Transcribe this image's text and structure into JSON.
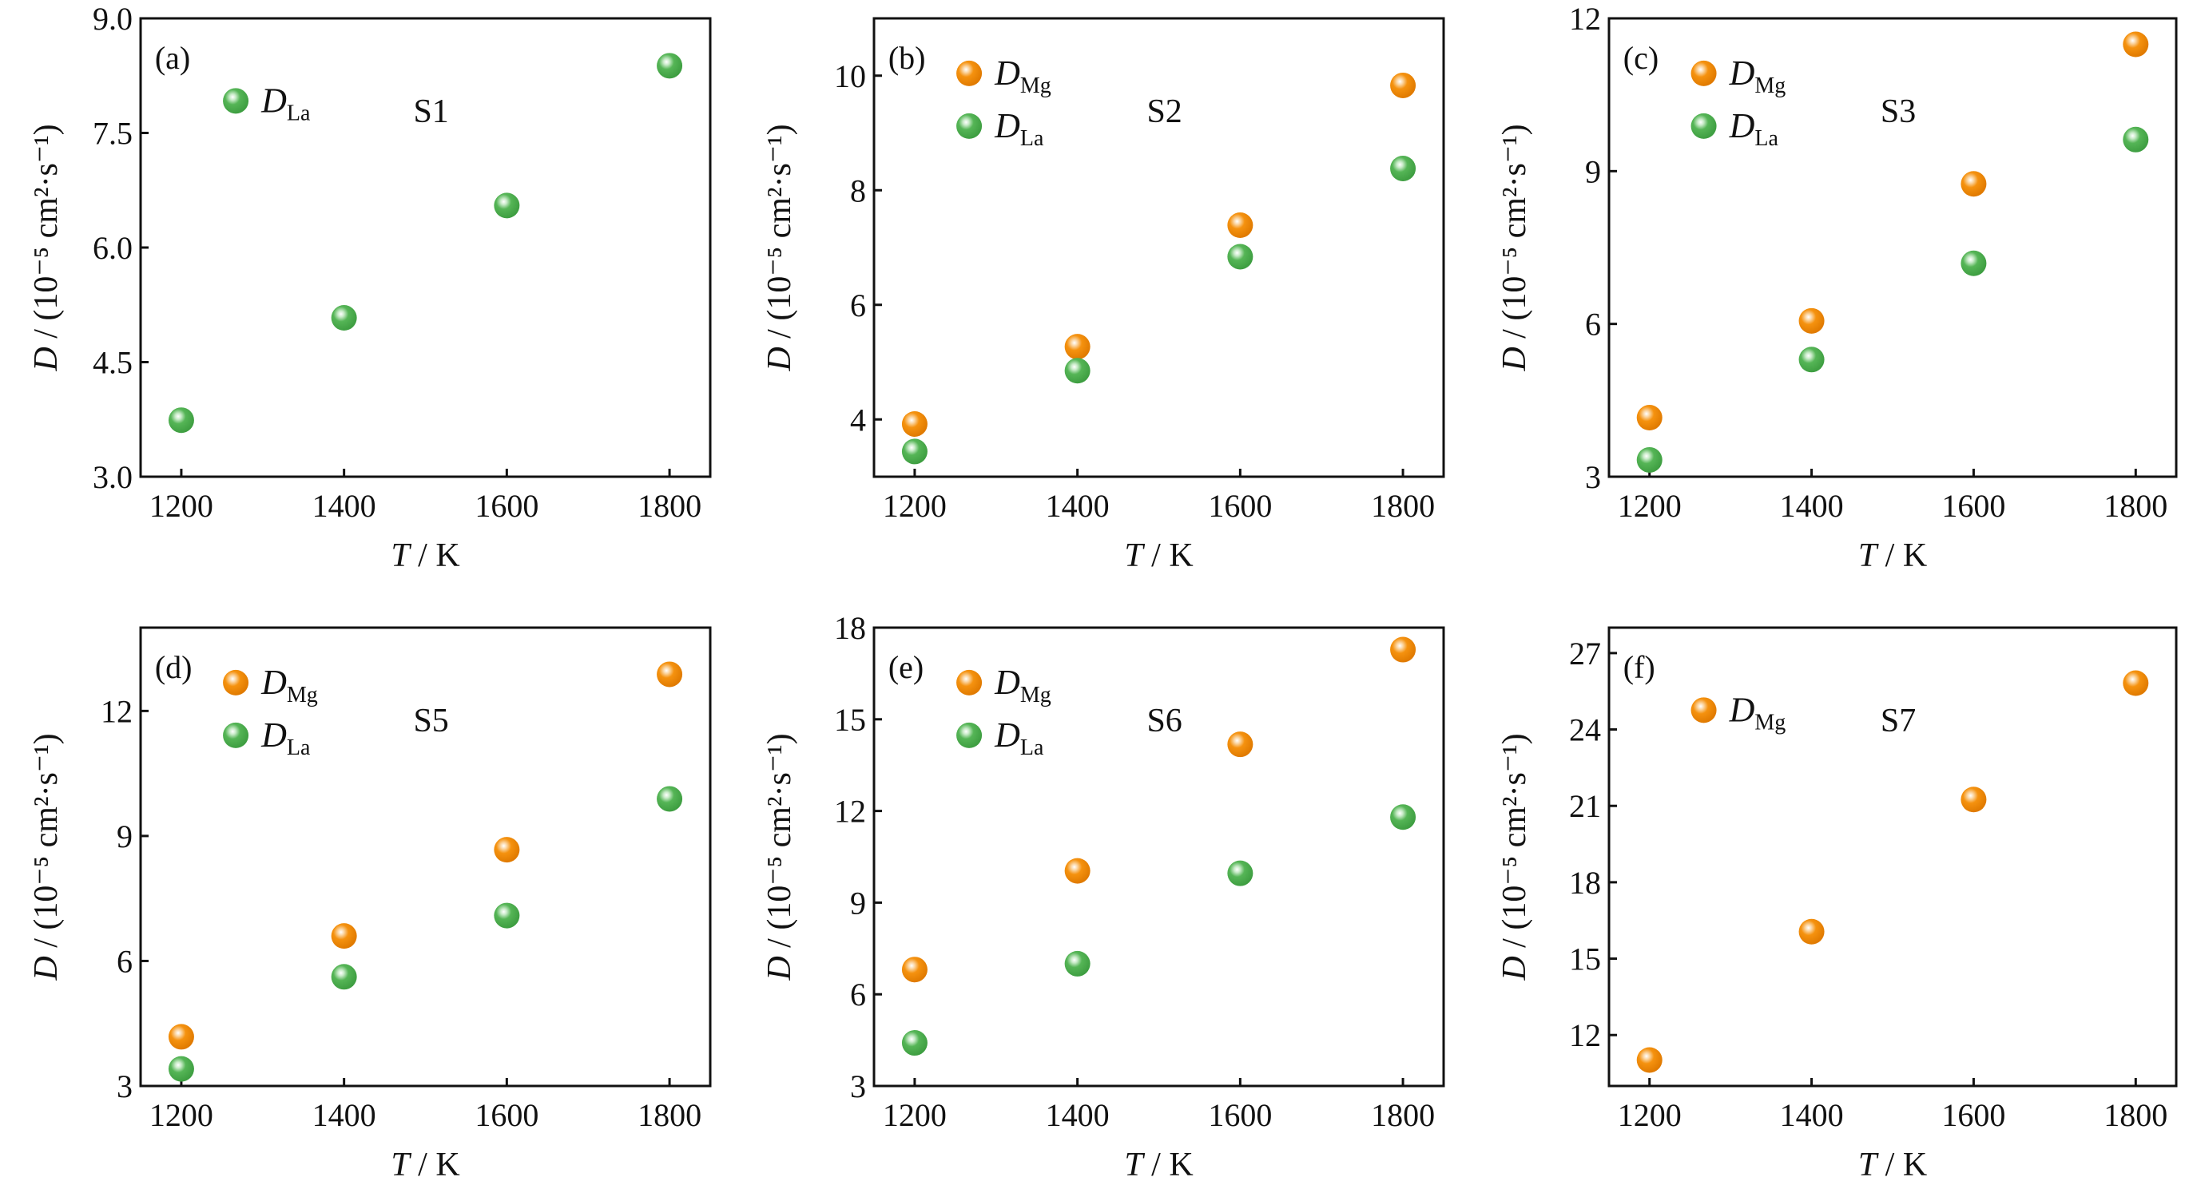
{
  "colors": {
    "D_Mg": "#F28A0C",
    "D_La": "#4DAE4F",
    "axis": "#111111"
  },
  "chart_data": [
    {
      "type": "scatter",
      "panel_label": "(a)",
      "sample": "S1",
      "xlabel": "T / K",
      "ylabel": "D / (10⁻⁵ cm²·s⁻¹)",
      "xlim": [
        1150,
        1850
      ],
      "ylim": [
        3.0,
        9.0
      ],
      "xticks": [
        "1200",
        "1400",
        "1600",
        "1800"
      ],
      "yticks": [
        "3.0",
        "4.5",
        "6.0",
        "7.5",
        "9.0"
      ],
      "x": [
        1200,
        1400,
        1600,
        1800
      ],
      "series": [
        {
          "name": "D",
          "sub": "La",
          "key": "D_La",
          "values": [
            3.74,
            5.08,
            6.55,
            8.38
          ]
        }
      ],
      "legend": "top-left",
      "grid": false
    },
    {
      "type": "scatter",
      "panel_label": "(b)",
      "sample": "S2",
      "xlabel": "T / K",
      "ylabel": "D / (10⁻⁵ cm²·s⁻¹)",
      "xlim": [
        1150,
        1850
      ],
      "ylim": [
        3,
        11
      ],
      "xticks": [
        "1200",
        "1400",
        "1600",
        "1800"
      ],
      "yticks": [
        "4",
        "6",
        "8",
        "10"
      ],
      "x": [
        1200,
        1400,
        1600,
        1800
      ],
      "series": [
        {
          "name": "D",
          "sub": "Mg",
          "key": "D_Mg",
          "values": [
            3.92,
            5.27,
            7.39,
            9.83
          ]
        },
        {
          "name": "D",
          "sub": "La",
          "key": "D_La",
          "values": [
            3.44,
            4.85,
            6.84,
            8.38
          ]
        }
      ],
      "legend": "top-left",
      "grid": false
    },
    {
      "type": "scatter",
      "panel_label": "(c)",
      "sample": "S3",
      "xlabel": "T / K",
      "ylabel": "D / (10⁻⁵ cm²·s⁻¹)",
      "xlim": [
        1150,
        1850
      ],
      "ylim": [
        3,
        12
      ],
      "xticks": [
        "1200",
        "1400",
        "1600",
        "1800"
      ],
      "yticks": [
        "3",
        "6",
        "9",
        "12"
      ],
      "x": [
        1200,
        1400,
        1600,
        1800
      ],
      "series": [
        {
          "name": "D",
          "sub": "Mg",
          "key": "D_Mg",
          "values": [
            4.16,
            6.06,
            8.75,
            11.49
          ]
        },
        {
          "name": "D",
          "sub": "La",
          "key": "D_La",
          "values": [
            3.33,
            5.3,
            7.19,
            9.62
          ]
        }
      ],
      "legend": "top-left",
      "grid": false
    },
    {
      "type": "scatter",
      "panel_label": "(d)",
      "sample": "S5",
      "xlabel": "T / K",
      "ylabel": "D / (10⁻⁵ cm²·s⁻¹)",
      "xlim": [
        1150,
        1850
      ],
      "ylim": [
        3,
        14
      ],
      "xticks": [
        "1200",
        "1400",
        "1600",
        "1800"
      ],
      "yticks": [
        "3",
        "6",
        "9",
        "12"
      ],
      "x": [
        1200,
        1400,
        1600,
        1800
      ],
      "series": [
        {
          "name": "D",
          "sub": "Mg",
          "key": "D_Mg",
          "values": [
            4.18,
            6.6,
            8.67,
            12.88
          ]
        },
        {
          "name": "D",
          "sub": "La",
          "key": "D_La",
          "values": [
            3.41,
            5.62,
            7.09,
            9.89
          ]
        }
      ],
      "legend": "top-left",
      "grid": false
    },
    {
      "type": "scatter",
      "panel_label": "(e)",
      "sample": "S6",
      "xlabel": "T / K",
      "ylabel": "D / (10⁻⁵ cm²·s⁻¹)",
      "xlim": [
        1150,
        1850
      ],
      "ylim": [
        3,
        18
      ],
      "xticks": [
        "1200",
        "1400",
        "1600",
        "1800"
      ],
      "yticks": [
        "3",
        "6",
        "9",
        "12",
        "15",
        "18"
      ],
      "x": [
        1200,
        1400,
        1600,
        1800
      ],
      "series": [
        {
          "name": "D",
          "sub": "Mg",
          "key": "D_Mg",
          "values": [
            6.81,
            10.04,
            14.18,
            17.28
          ]
        },
        {
          "name": "D",
          "sub": "La",
          "key": "D_La",
          "values": [
            4.41,
            7.0,
            9.96,
            11.8
          ]
        }
      ],
      "legend": "top-left",
      "grid": false
    },
    {
      "type": "scatter",
      "panel_label": "(f)",
      "sample": "S7",
      "xlabel": "T / K",
      "ylabel": "D / (10⁻⁵ cm²·s⁻¹)",
      "xlim": [
        1150,
        1850
      ],
      "ylim": [
        10,
        28
      ],
      "xticks": [
        "1200",
        "1400",
        "1600",
        "1800"
      ],
      "yticks": [
        "12",
        "15",
        "18",
        "21",
        "24",
        "27"
      ],
      "x": [
        1200,
        1400,
        1600,
        1800
      ],
      "series": [
        {
          "name": "D",
          "sub": "Mg",
          "key": "D_Mg",
          "values": [
            11.02,
            16.06,
            21.25,
            25.82
          ]
        }
      ],
      "legend": "top-left",
      "grid": false
    }
  ]
}
